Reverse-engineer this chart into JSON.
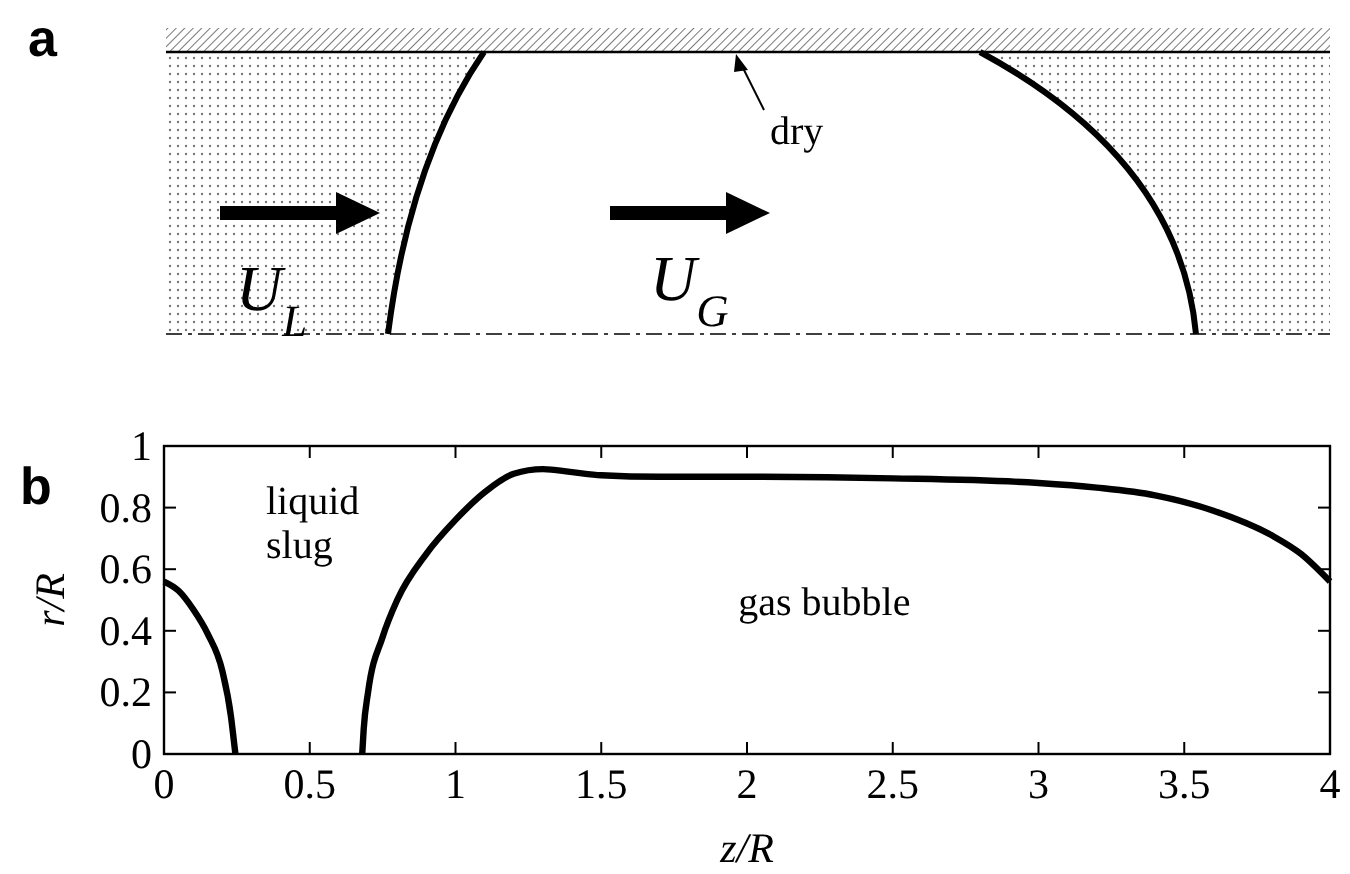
{
  "chart_data": [
    {
      "type": "other",
      "title": "a",
      "annotations": [
        "dry",
        "U$_{L}$",
        "U$_{G}$"
      ]
    },
    {
      "type": "line",
      "title": "b",
      "xlabel": "z/R",
      "ylabel": "r/R",
      "xlim": [
        0,
        4
      ],
      "ylim": [
        0,
        1
      ],
      "xticks": [
        0,
        0.5,
        1,
        1.5,
        2,
        2.5,
        3,
        3.5,
        4
      ],
      "yticks": [
        0,
        0.2,
        0.4,
        0.6,
        0.8,
        1
      ],
      "annotations": [
        "liquid slug",
        "gas bubble"
      ],
      "series": [
        {
          "color": "#000000",
          "x": [
            0,
            0.05,
            0.1,
            0.15,
            0.2,
            0.23,
            0.24,
            0.245
          ],
          "values": [
            0.56,
            0.53,
            0.47,
            0.39,
            0.27,
            0.12,
            0.04,
            0
          ]
        },
        {
          "color": "#000000",
          "x": [
            0.68,
            0.685,
            0.7,
            0.75,
            0.8,
            0.9,
            1.0,
            1.1,
            1.2,
            1.3,
            1.4,
            1.5,
            1.7,
            2.0,
            2.5,
            3.0,
            3.2,
            3.4,
            3.6,
            3.8,
            3.9,
            4.0
          ],
          "values": [
            0,
            0.08,
            0.2,
            0.38,
            0.5,
            0.65,
            0.76,
            0.85,
            0.91,
            0.925,
            0.915,
            0.905,
            0.9,
            0.9,
            0.895,
            0.88,
            0.865,
            0.84,
            0.79,
            0.71,
            0.65,
            0.56
          ]
        }
      ]
    }
  ]
}
